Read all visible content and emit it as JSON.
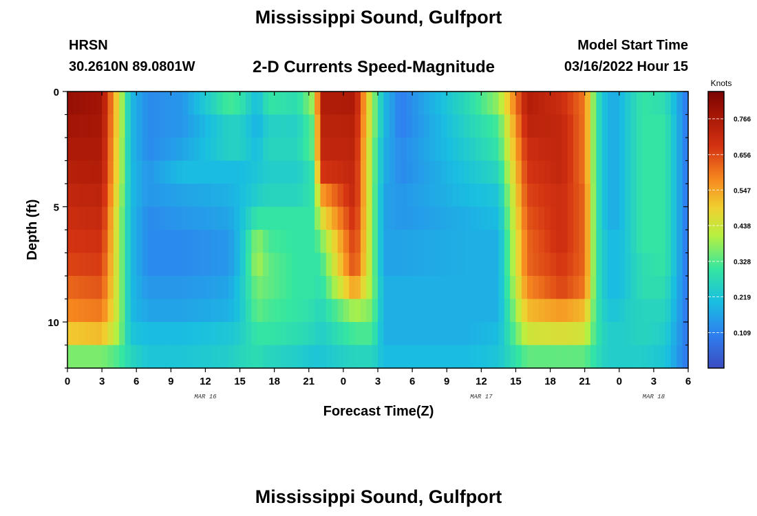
{
  "header": {
    "title": "Mississippi Sound, Gulfport",
    "station": "HRSN",
    "coords": "30.2610N  89.0801W",
    "subtitle": "2-D Currents Speed-Magnitude",
    "model_start_label": "Model Start Time",
    "model_start_value": "03/16/2022 Hour 15"
  },
  "footer": {
    "title": "Mississippi Sound, Gulfport"
  },
  "chart_data": {
    "type": "heatmap",
    "title": "2-D Currents Speed-Magnitude",
    "xlabel": "Forecast Time(Z)",
    "ylabel": "Depth (ft)",
    "x_tick_labels": [
      "0",
      "3",
      "6",
      "9",
      "12",
      "15",
      "18",
      "21",
      "0",
      "3",
      "6",
      "9",
      "12",
      "15",
      "18",
      "21",
      "0",
      "3",
      "6"
    ],
    "date_labels": [
      {
        "label": "MAR 16",
        "hours": 12
      },
      {
        "label": "MAR 17",
        "hours": 36
      },
      {
        "label": "MAR 18",
        "hours": 51
      }
    ],
    "y_tick_labels": [
      "0",
      "5",
      "10"
    ],
    "y_range_ft": [
      0,
      12
    ],
    "x_range_hours": [
      0,
      54
    ],
    "colorbar": {
      "unit": "Knots",
      "ticks": [
        "0.766",
        "0.656",
        "0.547",
        "0.438",
        "0.328",
        "0.219",
        "0.109"
      ],
      "range": [
        0,
        0.85
      ]
    },
    "depths_ft": [
      0.5,
      1.5,
      2.5,
      3.5,
      4.5,
      5.5,
      6.5,
      7.5,
      8.5,
      9.5,
      10.5,
      11.5
    ],
    "time_knots_hours": [
      0,
      3,
      4.5,
      5.5,
      7,
      10,
      14,
      15,
      16.5,
      17.5,
      20,
      21.5,
      22,
      25,
      26.5,
      27.5,
      29,
      35,
      37.5,
      40,
      43,
      45,
      46,
      47,
      48,
      48.5,
      50,
      52,
      54
    ],
    "speed_knots": [
      [
        0.8,
        0.78,
        0.45,
        0.2,
        0.12,
        0.14,
        0.32,
        0.3,
        0.2,
        0.3,
        0.28,
        0.4,
        0.75,
        0.76,
        0.4,
        0.2,
        0.1,
        0.28,
        0.38,
        0.75,
        0.7,
        0.6,
        0.3,
        0.18,
        0.18,
        0.22,
        0.3,
        0.28,
        0.08
      ],
      [
        0.78,
        0.77,
        0.45,
        0.2,
        0.12,
        0.14,
        0.25,
        0.25,
        0.18,
        0.25,
        0.25,
        0.35,
        0.73,
        0.74,
        0.4,
        0.2,
        0.1,
        0.26,
        0.32,
        0.73,
        0.72,
        0.6,
        0.3,
        0.18,
        0.18,
        0.22,
        0.3,
        0.3,
        0.08
      ],
      [
        0.76,
        0.76,
        0.44,
        0.2,
        0.12,
        0.16,
        0.25,
        0.25,
        0.2,
        0.26,
        0.26,
        0.35,
        0.72,
        0.73,
        0.38,
        0.18,
        0.12,
        0.24,
        0.3,
        0.7,
        0.72,
        0.6,
        0.3,
        0.18,
        0.18,
        0.22,
        0.3,
        0.3,
        0.08
      ],
      [
        0.74,
        0.75,
        0.44,
        0.2,
        0.14,
        0.2,
        0.2,
        0.2,
        0.22,
        0.24,
        0.24,
        0.3,
        0.68,
        0.72,
        0.38,
        0.18,
        0.12,
        0.22,
        0.26,
        0.68,
        0.72,
        0.6,
        0.3,
        0.18,
        0.18,
        0.22,
        0.3,
        0.3,
        0.08
      ],
      [
        0.72,
        0.73,
        0.42,
        0.2,
        0.14,
        0.16,
        0.18,
        0.2,
        0.24,
        0.26,
        0.26,
        0.3,
        0.55,
        0.72,
        0.38,
        0.16,
        0.14,
        0.2,
        0.22,
        0.66,
        0.7,
        0.62,
        0.3,
        0.18,
        0.18,
        0.22,
        0.3,
        0.3,
        0.08
      ],
      [
        0.7,
        0.71,
        0.4,
        0.2,
        0.12,
        0.14,
        0.16,
        0.2,
        0.3,
        0.3,
        0.3,
        0.3,
        0.45,
        0.7,
        0.38,
        0.16,
        0.14,
        0.18,
        0.2,
        0.64,
        0.7,
        0.62,
        0.3,
        0.18,
        0.18,
        0.22,
        0.3,
        0.3,
        0.08
      ],
      [
        0.68,
        0.69,
        0.4,
        0.2,
        0.12,
        0.12,
        0.14,
        0.2,
        0.38,
        0.32,
        0.3,
        0.3,
        0.35,
        0.68,
        0.38,
        0.16,
        0.16,
        0.18,
        0.18,
        0.62,
        0.7,
        0.62,
        0.3,
        0.2,
        0.2,
        0.22,
        0.3,
        0.3,
        0.08
      ],
      [
        0.66,
        0.67,
        0.4,
        0.2,
        0.12,
        0.12,
        0.14,
        0.2,
        0.4,
        0.34,
        0.3,
        0.3,
        0.3,
        0.66,
        0.38,
        0.16,
        0.16,
        0.18,
        0.18,
        0.62,
        0.68,
        0.62,
        0.3,
        0.2,
        0.2,
        0.22,
        0.28,
        0.3,
        0.08
      ],
      [
        0.62,
        0.64,
        0.4,
        0.2,
        0.14,
        0.14,
        0.16,
        0.22,
        0.36,
        0.34,
        0.3,
        0.3,
        0.28,
        0.56,
        0.38,
        0.18,
        0.18,
        0.18,
        0.18,
        0.58,
        0.66,
        0.6,
        0.3,
        0.2,
        0.2,
        0.22,
        0.28,
        0.28,
        0.08
      ],
      [
        0.58,
        0.6,
        0.4,
        0.2,
        0.16,
        0.16,
        0.18,
        0.22,
        0.34,
        0.32,
        0.3,
        0.28,
        0.26,
        0.4,
        0.36,
        0.18,
        0.18,
        0.18,
        0.18,
        0.52,
        0.56,
        0.52,
        0.3,
        0.22,
        0.22,
        0.24,
        0.26,
        0.26,
        0.08
      ],
      [
        0.5,
        0.52,
        0.38,
        0.22,
        0.2,
        0.2,
        0.22,
        0.24,
        0.3,
        0.3,
        0.28,
        0.26,
        0.24,
        0.32,
        0.32,
        0.18,
        0.18,
        0.18,
        0.2,
        0.44,
        0.46,
        0.44,
        0.3,
        0.24,
        0.24,
        0.24,
        0.26,
        0.24,
        0.08
      ],
      [
        0.36,
        0.36,
        0.32,
        0.26,
        0.22,
        0.22,
        0.24,
        0.26,
        0.28,
        0.26,
        0.24,
        0.22,
        0.22,
        0.26,
        0.26,
        0.2,
        0.2,
        0.2,
        0.22,
        0.34,
        0.34,
        0.34,
        0.28,
        0.24,
        0.24,
        0.24,
        0.24,
        0.22,
        0.08
      ]
    ]
  }
}
